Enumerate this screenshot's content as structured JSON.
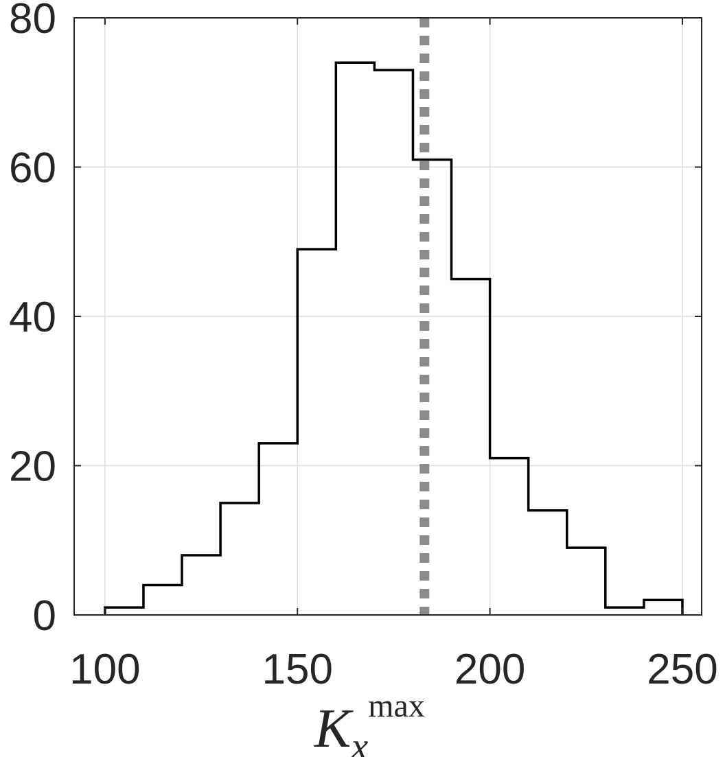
{
  "chart_data": {
    "type": "histogram",
    "xlabel": {
      "symbol": "K",
      "subscript": "x",
      "superscript": "max"
    },
    "xlim": [
      92,
      255
    ],
    "ylim": [
      0,
      80
    ],
    "xticks": [
      100,
      150,
      200,
      250
    ],
    "yticks": [
      0,
      20,
      40,
      60,
      80
    ],
    "grid": true,
    "bin_edges": [
      100,
      110,
      120,
      130,
      140,
      150,
      160,
      170,
      180,
      190,
      200,
      210,
      220,
      230,
      240,
      250
    ],
    "counts": [
      1,
      4,
      8,
      15,
      23,
      49,
      74,
      73,
      61,
      45,
      21,
      14,
      9,
      1,
      2
    ],
    "reference_line": {
      "x": 183,
      "style": "dotted",
      "color": "#8c8c8c"
    },
    "colors": {
      "histogram": "#000000",
      "axes": "#262626",
      "grid": "#dcdcdc"
    }
  }
}
